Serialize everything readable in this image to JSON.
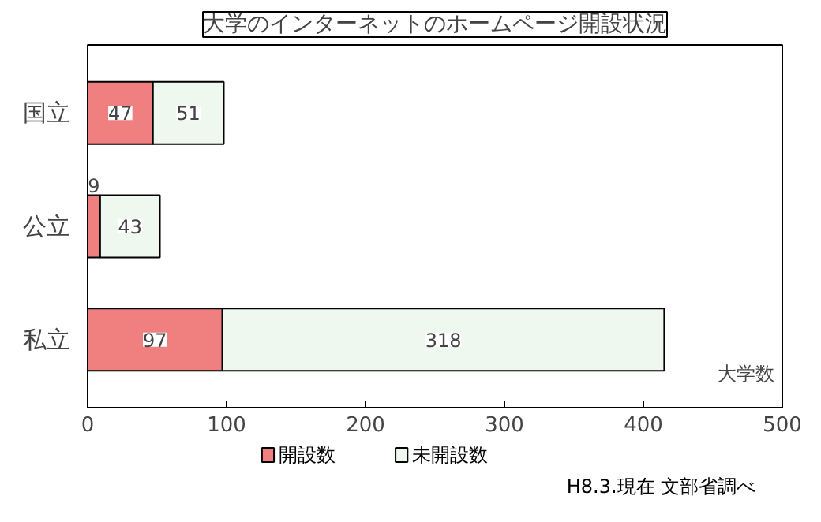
{
  "chart_data": {
    "type": "bar",
    "orientation": "horizontal",
    "stacked": true,
    "title": "大学のインターネットのホームページ開設状況",
    "xlabel": "大学数",
    "categories": [
      "国立",
      "公立",
      "私立"
    ],
    "series": [
      {
        "name": "開設数",
        "color": "#f08080",
        "values": [
          47,
          9,
          97
        ]
      },
      {
        "name": "未開設数",
        "color": "#eef8ee",
        "values": [
          51,
          43,
          318
        ]
      }
    ],
    "xlim": [
      0,
      500
    ],
    "xticks": [
      0,
      100,
      200,
      300,
      400,
      500
    ],
    "data_labels": true,
    "legend": "bottom",
    "grid": false,
    "annotations": [
      "H8.3.現在 文部省調べ"
    ]
  }
}
